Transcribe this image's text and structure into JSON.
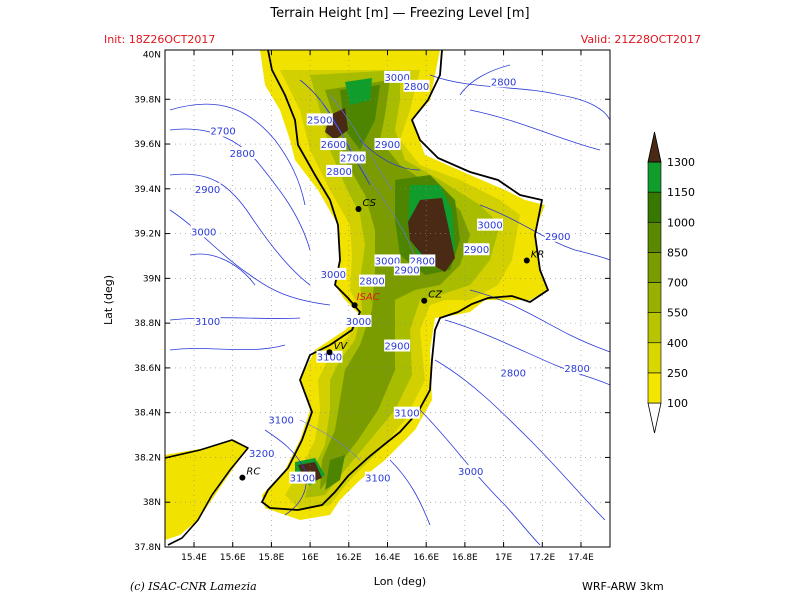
{
  "header": {
    "title": "Terrain Height [m] — Freezing Level [m]",
    "init": "Init: 18Z26OCT2017",
    "valid": "Valid: 21Z28OCT2017"
  },
  "footer": {
    "credit": "(c) ISAC-CNR Lamezia",
    "model": "WRF-ARW 3km"
  },
  "axes": {
    "xlabel": "Lon (deg)",
    "ylabel": "Lat (deg)",
    "lon_ticks": [
      "15.4E",
      "15.6E",
      "15.8E",
      "16E",
      "16.2E",
      "16.4E",
      "16.6E",
      "16.8E",
      "17E",
      "17.2E",
      "17.4E"
    ],
    "lat_ticks": [
      "39.8N",
      "39.6N",
      "39.4N",
      "39.2N",
      "39N",
      "38.8N",
      "38.6N",
      "38.4N",
      "38.2N",
      "38N",
      "37.8N"
    ],
    "lat_top": "40N"
  },
  "legend": {
    "levels": [
      "100",
      "250",
      "400",
      "550",
      "700",
      "850",
      "1000",
      "1150",
      "1300"
    ],
    "colors": [
      "#f5e600",
      "#d8d800",
      "#b8c400",
      "#98b000",
      "#7a9c00",
      "#5a8800",
      "#367800",
      "#119d2c",
      "#4a2a14"
    ]
  },
  "cities": [
    {
      "code": "CS",
      "lon": 16.25,
      "lat": 39.31
    },
    {
      "code": "KR",
      "lon": 17.12,
      "lat": 39.08
    },
    {
      "code": "CZ",
      "lon": 16.59,
      "lat": 38.9
    },
    {
      "code": "ISAC",
      "lon": 16.23,
      "lat": 38.88
    },
    {
      "code": "VV",
      "lon": 16.1,
      "lat": 38.67
    },
    {
      "code": "RC",
      "lon": 15.65,
      "lat": 38.11
    }
  ],
  "freezing_labels": [
    {
      "text": "3000",
      "lon": 16.45,
      "lat": 39.9
    },
    {
      "text": "2800",
      "lon": 16.55,
      "lat": 39.86
    },
    {
      "text": "2500",
      "lon": 16.05,
      "lat": 39.71
    },
    {
      "text": "2800",
      "lon": 17.0,
      "lat": 39.88
    },
    {
      "text": "2700",
      "lon": 15.55,
      "lat": 39.66
    },
    {
      "text": "2800",
      "lon": 15.65,
      "lat": 39.56
    },
    {
      "text": "2600",
      "lon": 16.12,
      "lat": 39.6
    },
    {
      "text": "2700",
      "lon": 16.22,
      "lat": 39.54
    },
    {
      "text": "2900",
      "lon": 16.4,
      "lat": 39.6
    },
    {
      "text": "2800",
      "lon": 16.15,
      "lat": 39.48
    },
    {
      "text": "2900",
      "lon": 15.47,
      "lat": 39.4
    },
    {
      "text": "3000",
      "lon": 15.45,
      "lat": 39.21
    },
    {
      "text": "3000",
      "lon": 16.93,
      "lat": 39.24
    },
    {
      "text": "2900",
      "lon": 17.28,
      "lat": 39.19
    },
    {
      "text": "2900",
      "lon": 16.86,
      "lat": 39.13
    },
    {
      "text": "3000",
      "lon": 16.4,
      "lat": 39.08
    },
    {
      "text": "2800",
      "lon": 16.58,
      "lat": 39.08
    },
    {
      "text": "2900",
      "lon": 16.5,
      "lat": 39.04
    },
    {
      "text": "3000",
      "lon": 16.12,
      "lat": 39.02
    },
    {
      "text": "2800",
      "lon": 16.32,
      "lat": 38.99
    },
    {
      "text": "3100",
      "lon": 15.47,
      "lat": 38.81
    },
    {
      "text": "3000",
      "lon": 16.25,
      "lat": 38.81
    },
    {
      "text": "2900",
      "lon": 16.45,
      "lat": 38.7
    },
    {
      "text": "3100",
      "lon": 16.1,
      "lat": 38.65
    },
    {
      "text": "2800",
      "lon": 17.05,
      "lat": 38.58
    },
    {
      "text": "2800",
      "lon": 17.38,
      "lat": 38.6
    },
    {
      "text": "3100",
      "lon": 16.5,
      "lat": 38.4
    },
    {
      "text": "3100",
      "lon": 15.85,
      "lat": 38.37
    },
    {
      "text": "3200",
      "lon": 15.75,
      "lat": 38.22
    },
    {
      "text": "3000",
      "lon": 16.83,
      "lat": 38.14
    },
    {
      "text": "3100",
      "lon": 16.35,
      "lat": 38.11
    },
    {
      "text": "3100",
      "lon": 15.96,
      "lat": 38.11
    }
  ]
}
